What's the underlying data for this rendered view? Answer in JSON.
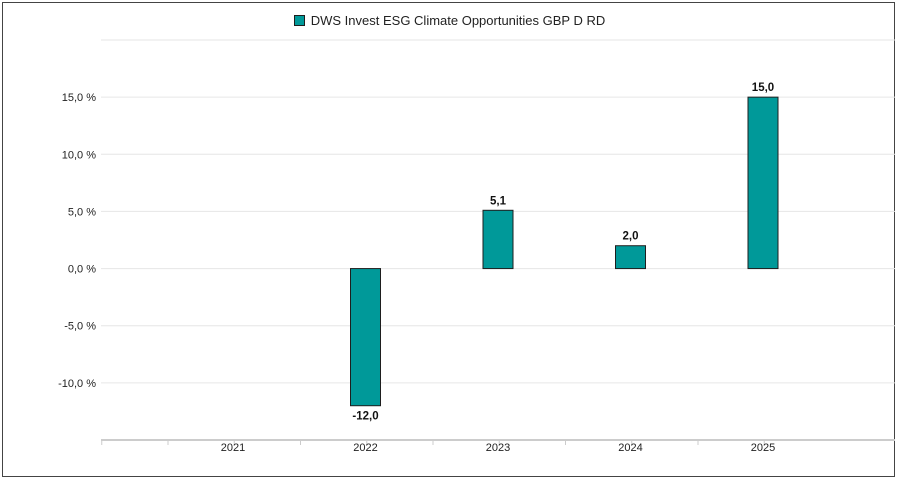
{
  "chart_data": {
    "type": "bar",
    "title": "",
    "xlabel": "",
    "ylabel": "",
    "categories": [
      "2021",
      "2022",
      "2023",
      "2024",
      "2025"
    ],
    "series": [
      {
        "name": "DWS Invest ESG Climate Opportunities GBP D RD",
        "color": "#009999",
        "values": [
          null,
          -12.0,
          5.1,
          2.0,
          15.0
        ],
        "value_labels": [
          "",
          "-12,0",
          "5,1",
          "2,0",
          "15,0"
        ]
      }
    ],
    "ylim": [
      -15,
      20
    ],
    "yticks": [
      15,
      10,
      5,
      0,
      -5,
      -10
    ],
    "ytick_labels": [
      "15,0 %",
      "10,0 %",
      "5,0 %",
      "0,0 %",
      "-5,0 %",
      "-10,0 %"
    ],
    "grid": true,
    "legend_position": "top-center"
  }
}
